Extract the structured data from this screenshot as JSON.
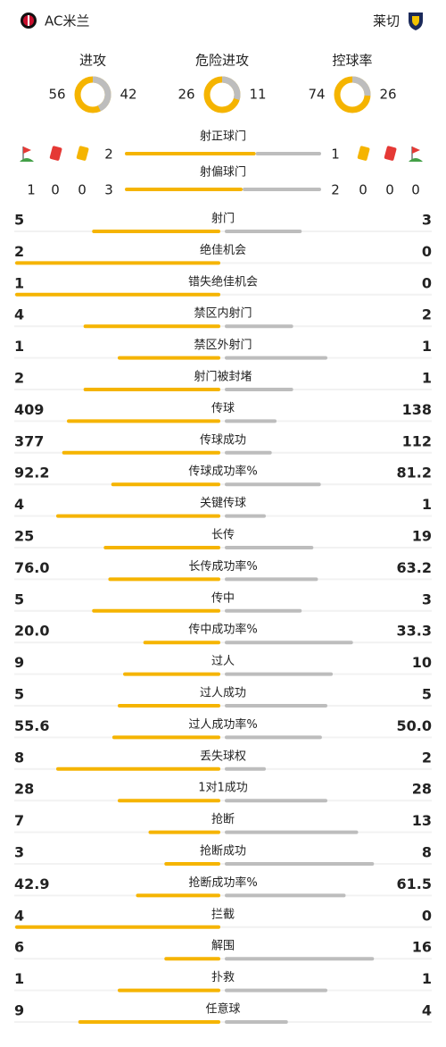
{
  "header": {
    "home_team": "AC米兰",
    "away_team": "莱切"
  },
  "summary": [
    {
      "label": "进攻",
      "home": 56,
      "away": 42
    },
    {
      "label": "危险进攻",
      "home": 26,
      "away": 11
    },
    {
      "label": "控球率",
      "home": 74,
      "away": 26
    }
  ],
  "cards": {
    "home": {
      "corners": 1,
      "red": 0,
      "yellow": 0
    },
    "away": {
      "yellow": 0,
      "red": 0,
      "corners": 0
    }
  },
  "shots": [
    {
      "label": "射正球门",
      "home": 2,
      "away": 1
    },
    {
      "label": "射偏球门",
      "home": 3,
      "away": 2
    }
  ],
  "stats": [
    {
      "label": "射门",
      "home": "5",
      "away": "3"
    },
    {
      "label": "绝佳机会",
      "home": "2",
      "away": "0"
    },
    {
      "label": "错失绝佳机会",
      "home": "1",
      "away": "0"
    },
    {
      "label": "禁区内射门",
      "home": "4",
      "away": "2"
    },
    {
      "label": "禁区外射门",
      "home": "1",
      "away": "1"
    },
    {
      "label": "射门被封堵",
      "home": "2",
      "away": "1"
    },
    {
      "label": "传球",
      "home": "409",
      "away": "138"
    },
    {
      "label": "传球成功",
      "home": "377",
      "away": "112"
    },
    {
      "label": "传球成功率%",
      "home": "92.2",
      "away": "81.2"
    },
    {
      "label": "关键传球",
      "home": "4",
      "away": "1"
    },
    {
      "label": "长传",
      "home": "25",
      "away": "19"
    },
    {
      "label": "长传成功率%",
      "home": "76.0",
      "away": "63.2"
    },
    {
      "label": "传中",
      "home": "5",
      "away": "3"
    },
    {
      "label": "传中成功率%",
      "home": "20.0",
      "away": "33.3"
    },
    {
      "label": "过人",
      "home": "9",
      "away": "10"
    },
    {
      "label": "过人成功",
      "home": "5",
      "away": "5"
    },
    {
      "label": "过人成功率%",
      "home": "55.6",
      "away": "50.0"
    },
    {
      "label": "丢失球权",
      "home": "8",
      "away": "2"
    },
    {
      "label": "1对1成功",
      "home": "28",
      "away": "28"
    },
    {
      "label": "抢断",
      "home": "7",
      "away": "13"
    },
    {
      "label": "抢断成功",
      "home": "3",
      "away": "8"
    },
    {
      "label": "抢断成功率%",
      "home": "42.9",
      "away": "61.5"
    },
    {
      "label": "拦截",
      "home": "4",
      "away": "0"
    },
    {
      "label": "解围",
      "home": "6",
      "away": "16"
    },
    {
      "label": "扑救",
      "home": "1",
      "away": "1"
    },
    {
      "label": "任意球",
      "home": "9",
      "away": "4"
    }
  ]
}
